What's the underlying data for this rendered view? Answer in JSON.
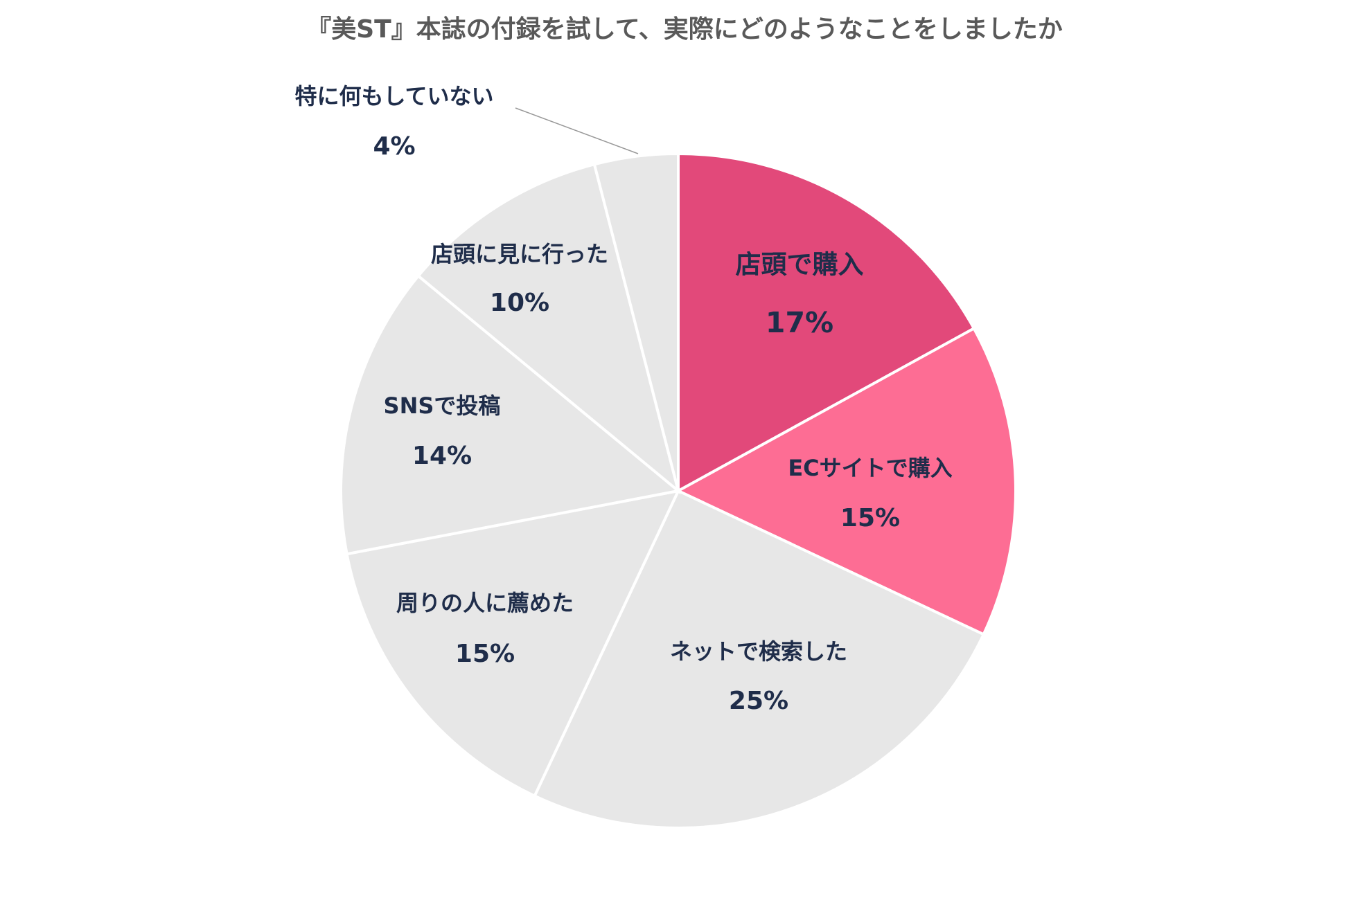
{
  "chart_data": {
    "type": "pie",
    "title": "『美ST』本誌の付録を試して、実際にどのようなことをしましたか",
    "categories": [
      "店頭で購入",
      "ECサイトで購入",
      "ネットで検索した",
      "周りの人に薦めた",
      "SNSで投稿",
      "店頭に見に行った",
      "特に何もしていない"
    ],
    "values": [
      17,
      15,
      25,
      15,
      14,
      10,
      4
    ],
    "value_labels": [
      "17%",
      "15%",
      "25%",
      "15%",
      "14%",
      "10%",
      "4%"
    ],
    "colors": [
      "#e2497a",
      "#fd6d94",
      "#e7e7e7",
      "#e7e7e7",
      "#e7e7e7",
      "#e7e7e7",
      "#e7e7e7"
    ]
  }
}
